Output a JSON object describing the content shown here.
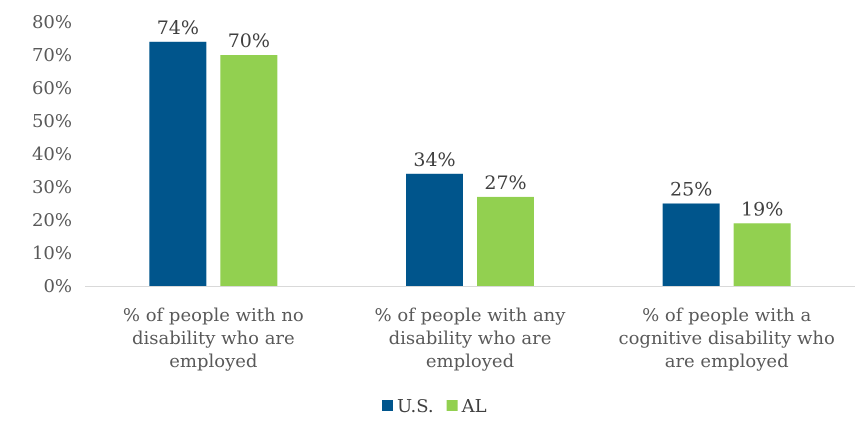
{
  "chart_data": {
    "type": "bar",
    "title": "",
    "xlabel": "",
    "ylabel": "",
    "ylim": [
      0,
      80
    ],
    "yticks": [
      0,
      10,
      20,
      30,
      40,
      50,
      60,
      70,
      80
    ],
    "ytick_labels": [
      "0%",
      "10%",
      "20%",
      "30%",
      "40%",
      "50%",
      "60%",
      "70%",
      "80%"
    ],
    "grid": false,
    "legend_position": "bottom",
    "categories": [
      [
        "% of people with no",
        "disability who are",
        "employed"
      ],
      [
        "% of people with any",
        "disability who are",
        "employed"
      ],
      [
        "% of people with a",
        "cognitive disability who",
        "are employed"
      ]
    ],
    "series": [
      {
        "name": "U.S.",
        "color": "#00558C",
        "values": [
          74,
          34,
          25
        ],
        "labels": [
          "74%",
          "34%",
          "25%"
        ]
      },
      {
        "name": "AL",
        "color": "#92D050",
        "values": [
          70,
          27,
          19
        ],
        "labels": [
          "70%",
          "27%",
          "19%"
        ]
      }
    ]
  }
}
